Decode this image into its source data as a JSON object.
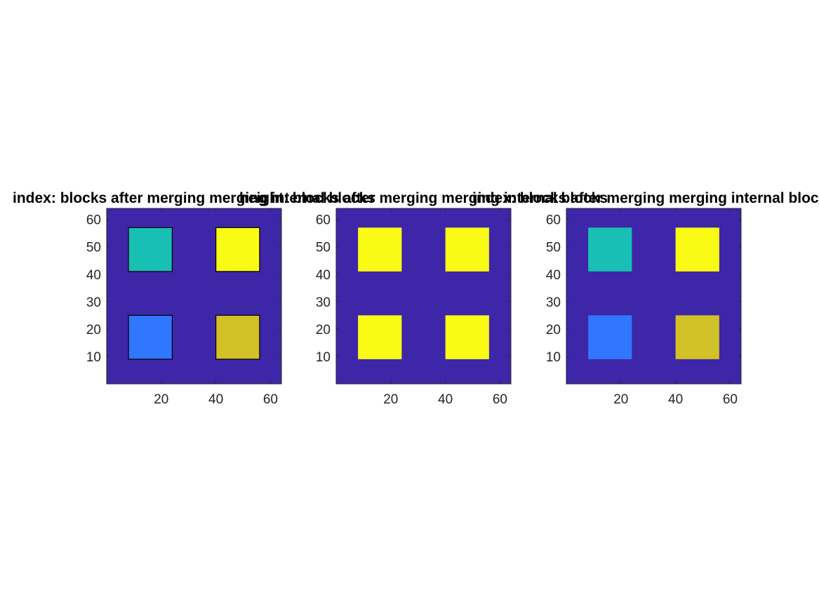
{
  "colors": {
    "background": "#3d26a8",
    "cyan": "#17bfb4",
    "blue": "#3076ff",
    "yellow": "#f9fb14",
    "olive": "#d2c027",
    "axis": "#262626"
  },
  "chart_data": [
    {
      "type": "heatmap",
      "title": "index: blocks after merging merging internal blocks",
      "xlabel": "",
      "ylabel": "",
      "xlim": [
        0,
        64
      ],
      "ylim": [
        0,
        64
      ],
      "xticks": [
        20,
        40,
        60
      ],
      "yticks": [
        10,
        20,
        30,
        40,
        50,
        60
      ],
      "tick_labels_x": [
        "20",
        "40",
        "60"
      ],
      "tick_labels_y": [
        "10",
        "20",
        "30",
        "40",
        "50",
        "60"
      ],
      "background_color": "#3d26a8",
      "edges": true,
      "blocks": [
        {
          "x": [
            8,
            24
          ],
          "y": [
            41,
            57
          ],
          "color": "cyan"
        },
        {
          "x": [
            40,
            56
          ],
          "y": [
            41,
            57
          ],
          "color": "yellow"
        },
        {
          "x": [
            8,
            24
          ],
          "y": [
            9,
            25
          ],
          "color": "blue"
        },
        {
          "x": [
            40,
            56
          ],
          "y": [
            9,
            25
          ],
          "color": "olive"
        }
      ]
    },
    {
      "type": "heatmap",
      "title": "height: blocks after merging merging internal blocks",
      "xlabel": "",
      "ylabel": "",
      "xlim": [
        0,
        64
      ],
      "ylim": [
        0,
        64
      ],
      "xticks": [
        20,
        40,
        60
      ],
      "yticks": [
        10,
        20,
        30,
        40,
        50,
        60
      ],
      "tick_labels_x": [
        "20",
        "40",
        "60"
      ],
      "tick_labels_y": [
        "10",
        "20",
        "30",
        "40",
        "50",
        "60"
      ],
      "background_color": "#3d26a8",
      "edges": false,
      "blocks": [
        {
          "x": [
            8,
            24
          ],
          "y": [
            41,
            57
          ],
          "color": "yellow"
        },
        {
          "x": [
            40,
            56
          ],
          "y": [
            41,
            57
          ],
          "color": "yellow"
        },
        {
          "x": [
            8,
            24
          ],
          "y": [
            9,
            25
          ],
          "color": "yellow"
        },
        {
          "x": [
            40,
            56
          ],
          "y": [
            9,
            25
          ],
          "color": "yellow"
        }
      ]
    },
    {
      "type": "heatmap",
      "title": "index: blocks after merging merging internal blocks",
      "xlabel": "",
      "ylabel": "",
      "xlim": [
        0,
        64
      ],
      "ylim": [
        0,
        64
      ],
      "xticks": [
        20,
        40,
        60
      ],
      "yticks": [
        10,
        20,
        30,
        40,
        50,
        60
      ],
      "tick_labels_x": [
        "20",
        "40",
        "60"
      ],
      "tick_labels_y": [
        "10",
        "20",
        "30",
        "40",
        "50",
        "60"
      ],
      "background_color": "#3d26a8",
      "edges": false,
      "blocks": [
        {
          "x": [
            8,
            24
          ],
          "y": [
            41,
            57
          ],
          "color": "cyan"
        },
        {
          "x": [
            40,
            56
          ],
          "y": [
            41,
            57
          ],
          "color": "yellow"
        },
        {
          "x": [
            8,
            24
          ],
          "y": [
            9,
            25
          ],
          "color": "blue"
        },
        {
          "x": [
            40,
            56
          ],
          "y": [
            9,
            25
          ],
          "color": "olive"
        }
      ]
    }
  ]
}
